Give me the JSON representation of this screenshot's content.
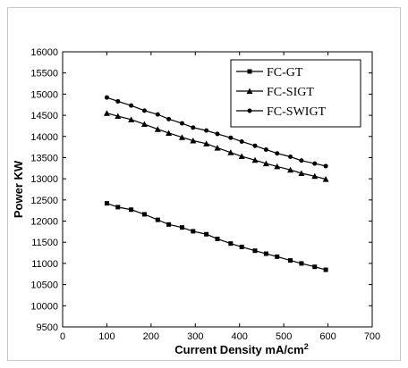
{
  "chart_data": {
    "type": "line",
    "title": "",
    "xlabel": "Current Density mA/cm",
    "xlabel_superscript": "2",
    "ylabel": "Power KW",
    "xlim": [
      0,
      700
    ],
    "ylim": [
      9500,
      16000
    ],
    "x_ticks": [
      "0",
      "100",
      "200",
      "300",
      "400",
      "500",
      "600",
      "700"
    ],
    "y_ticks": [
      "9500",
      "10000",
      "10500",
      "11000",
      "11500",
      "12000",
      "12500",
      "13000",
      "13500",
      "14000",
      "14500",
      "15000",
      "15500",
      "16000"
    ],
    "grid": false,
    "legend_position": "top-right",
    "x": [
      100,
      125,
      155,
      185,
      215,
      240,
      270,
      295,
      325,
      350,
      380,
      405,
      435,
      460,
      485,
      515,
      540,
      570,
      595
    ],
    "series": [
      {
        "name": "FC-GT",
        "marker": "square",
        "values": [
          12420,
          12330,
          12270,
          12160,
          12030,
          11920,
          11850,
          11760,
          11690,
          11580,
          11470,
          11390,
          11300,
          11230,
          11160,
          11070,
          11000,
          10920,
          10850
        ]
      },
      {
        "name": "FC-SIGT",
        "marker": "triangle",
        "values": [
          14550,
          14480,
          14400,
          14290,
          14170,
          14080,
          13980,
          13900,
          13830,
          13730,
          13620,
          13530,
          13440,
          13360,
          13290,
          13210,
          13130,
          13060,
          12990
        ]
      },
      {
        "name": "FC-SWIGT",
        "marker": "circle",
        "values": [
          14920,
          14830,
          14730,
          14610,
          14520,
          14410,
          14310,
          14210,
          14140,
          14060,
          13970,
          13880,
          13780,
          13690,
          13600,
          13520,
          13430,
          13360,
          13300
        ]
      }
    ]
  }
}
